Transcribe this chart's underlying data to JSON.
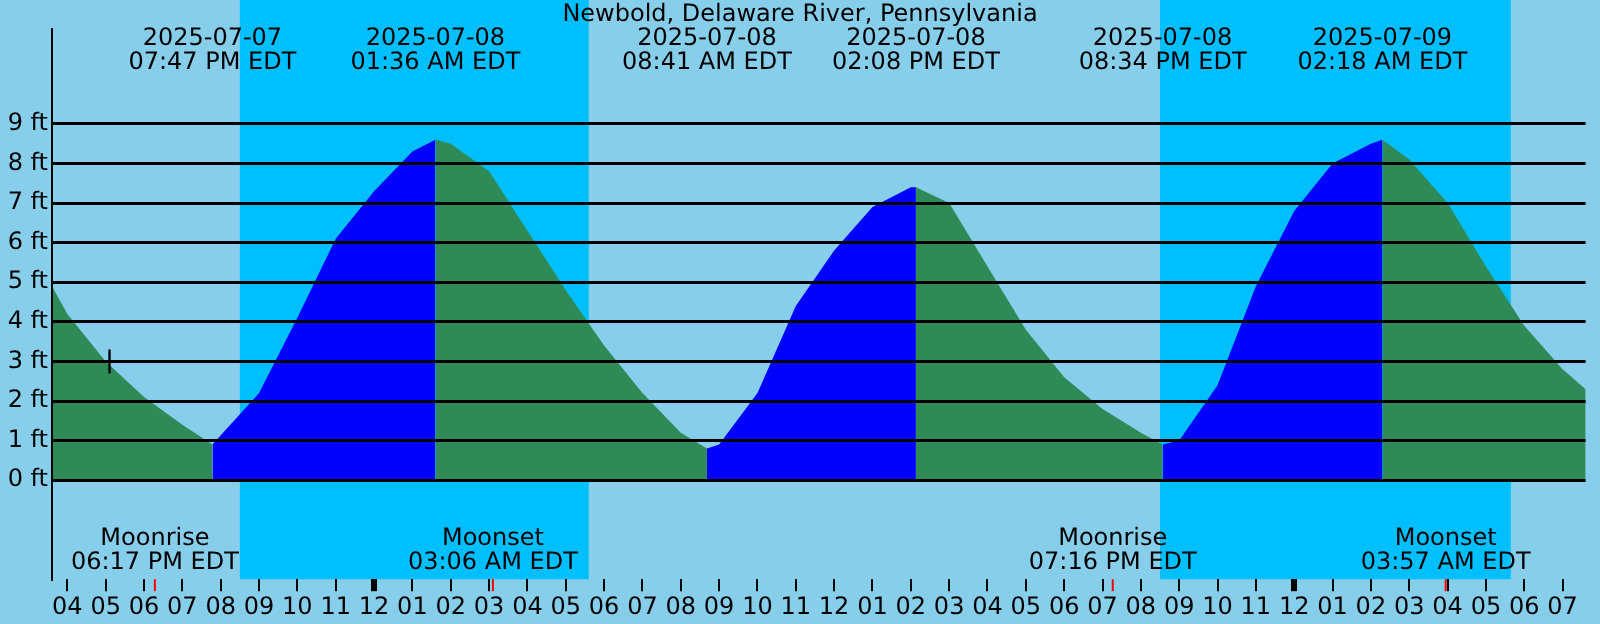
{
  "chart_data": {
    "type": "area",
    "title": "Newbold, Delaware River, Pennsylvania",
    "series": [
      {
        "color": "#2e8b57",
        "x": [
          "2025-07-07T15:36",
          "2025-07-07T16:00",
          "2025-07-07T17:00",
          "2025-07-07T18:00",
          "2025-07-07T19:00",
          "2025-07-07T19:47"
        ],
        "values": [
          4.9,
          4.2,
          3.0,
          2.1,
          1.4,
          0.9
        ]
      },
      {
        "color": "#0000ff",
        "x": [
          "2025-07-07T19:47",
          "2025-07-07T21:00",
          "2025-07-07T22:00",
          "2025-07-07T23:00",
          "2025-07-08T00:00",
          "2025-07-08T01:00",
          "2025-07-08T01:36"
        ],
        "values": [
          0.9,
          2.2,
          4.1,
          6.1,
          7.3,
          8.3,
          8.6
        ]
      },
      {
        "color": "#2e8b57",
        "x": [
          "2025-07-08T01:36",
          "2025-07-08T02:00",
          "2025-07-08T03:00",
          "2025-07-08T04:00",
          "2025-07-08T05:00",
          "2025-07-08T06:00",
          "2025-07-08T07:00",
          "2025-07-08T08:00",
          "2025-07-08T08:41"
        ],
        "values": [
          8.6,
          8.5,
          7.8,
          6.3,
          4.8,
          3.4,
          2.2,
          1.2,
          0.8
        ]
      },
      {
        "color": "#0000ff",
        "x": [
          "2025-07-08T08:41",
          "2025-07-08T09:00",
          "2025-07-08T10:00",
          "2025-07-08T11:00",
          "2025-07-08T12:00",
          "2025-07-08T13:00",
          "2025-07-08T14:00",
          "2025-07-08T14:08"
        ],
        "values": [
          0.8,
          0.9,
          2.2,
          4.4,
          5.8,
          6.9,
          7.4,
          7.4
        ]
      },
      {
        "color": "#2e8b57",
        "x": [
          "2025-07-08T14:08",
          "2025-07-08T15:00",
          "2025-07-08T16:00",
          "2025-07-08T17:00",
          "2025-07-08T18:00",
          "2025-07-08T19:00",
          "2025-07-08T20:00",
          "2025-07-08T20:34"
        ],
        "values": [
          7.4,
          7.0,
          5.4,
          3.8,
          2.6,
          1.8,
          1.2,
          0.9
        ]
      },
      {
        "color": "#0000ff",
        "x": [
          "2025-07-08T20:34",
          "2025-07-08T21:00",
          "2025-07-08T22:00",
          "2025-07-08T23:00",
          "2025-07-09T00:00",
          "2025-07-09T01:00",
          "2025-07-09T02:00",
          "2025-07-09T02:18"
        ],
        "values": [
          0.9,
          1.0,
          2.4,
          4.9,
          6.8,
          8.0,
          8.5,
          8.6
        ]
      },
      {
        "color": "#2e8b57",
        "x": [
          "2025-07-09T02:18",
          "2025-07-09T03:00",
          "2025-07-09T04:00",
          "2025-07-09T05:00",
          "2025-07-09T06:00",
          "2025-07-09T07:00",
          "2025-07-09T07:36"
        ],
        "values": [
          8.6,
          8.1,
          7.0,
          5.4,
          3.9,
          2.8,
          2.3
        ]
      },
      {
        "type": "scatter",
        "color": "#000000",
        "marker": "cross",
        "x": [
          "2025-07-07T17:06"
        ],
        "values": [
          3.0
        ]
      }
    ],
    "xlim": [
      "2025-07-07T15:36",
      "2025-07-09T07:36"
    ],
    "xticks": [
      {
        "value": "2025-07-07T16:00",
        "label": "04"
      },
      {
        "value": "2025-07-07T17:00",
        "label": "05"
      },
      {
        "value": "2025-07-07T18:00",
        "label": "06"
      },
      {
        "value": "2025-07-07T19:00",
        "label": "07"
      },
      {
        "value": "2025-07-07T20:00",
        "label": "08"
      },
      {
        "value": "2025-07-07T21:00",
        "label": "09"
      },
      {
        "value": "2025-07-07T22:00",
        "label": "10"
      },
      {
        "value": "2025-07-07T23:00",
        "label": "11"
      },
      {
        "value": "2025-07-08T00:00",
        "label": "12"
      },
      {
        "value": "2025-07-08T01:00",
        "label": "01"
      },
      {
        "value": "2025-07-08T02:00",
        "label": "02"
      },
      {
        "value": "2025-07-08T03:00",
        "label": "03"
      },
      {
        "value": "2025-07-08T04:00",
        "label": "04"
      },
      {
        "value": "2025-07-08T05:00",
        "label": "05"
      },
      {
        "value": "2025-07-08T06:00",
        "label": "06"
      },
      {
        "value": "2025-07-08T07:00",
        "label": "07"
      },
      {
        "value": "2025-07-08T08:00",
        "label": "08"
      },
      {
        "value": "2025-07-08T09:00",
        "label": "09"
      },
      {
        "value": "2025-07-08T10:00",
        "label": "10"
      },
      {
        "value": "2025-07-08T11:00",
        "label": "11"
      },
      {
        "value": "2025-07-08T12:00",
        "label": "12"
      },
      {
        "value": "2025-07-08T13:00",
        "label": "01"
      },
      {
        "value": "2025-07-08T14:00",
        "label": "02"
      },
      {
        "value": "2025-07-08T15:00",
        "label": "03"
      },
      {
        "value": "2025-07-08T16:00",
        "label": "04"
      },
      {
        "value": "2025-07-08T17:00",
        "label": "05"
      },
      {
        "value": "2025-07-08T18:00",
        "label": "06"
      },
      {
        "value": "2025-07-08T19:00",
        "label": "07"
      },
      {
        "value": "2025-07-08T20:00",
        "label": "08"
      },
      {
        "value": "2025-07-08T21:00",
        "label": "09"
      },
      {
        "value": "2025-07-08T22:00",
        "label": "10"
      },
      {
        "value": "2025-07-08T23:00",
        "label": "11"
      },
      {
        "value": "2025-07-09T00:00",
        "label": "12"
      },
      {
        "value": "2025-07-09T01:00",
        "label": "01"
      },
      {
        "value": "2025-07-09T02:00",
        "label": "02"
      },
      {
        "value": "2025-07-09T03:00",
        "label": "03"
      },
      {
        "value": "2025-07-09T04:00",
        "label": "04"
      },
      {
        "value": "2025-07-09T05:00",
        "label": "05"
      },
      {
        "value": "2025-07-09T06:00",
        "label": "06"
      },
      {
        "value": "2025-07-09T07:00",
        "label": "07"
      }
    ],
    "ylim": [
      -2.5,
      11.4
    ],
    "yticks": [
      {
        "value": 0,
        "label": "0 ft"
      },
      {
        "value": 1,
        "label": "1 ft"
      },
      {
        "value": 2,
        "label": "2 ft"
      },
      {
        "value": 3,
        "label": "3 ft"
      },
      {
        "value": 4,
        "label": "4 ft"
      },
      {
        "value": 5,
        "label": "5 ft"
      },
      {
        "value": 6,
        "label": "6 ft"
      },
      {
        "value": 7,
        "label": "7 ft"
      },
      {
        "value": 8,
        "label": "8 ft"
      },
      {
        "value": 9,
        "label": "9 ft"
      }
    ],
    "grid": "y",
    "bands": [
      {
        "axis": "x",
        "from": "2025-07-07T20:30",
        "to": "2025-07-08T05:36",
        "color": "#00bfff"
      },
      {
        "axis": "x",
        "from": "2025-07-08T20:30",
        "to": "2025-07-09T05:39",
        "color": "#00bfff"
      }
    ],
    "ref_lines": [
      {
        "axis": "x",
        "value": "2025-07-07T18:17",
        "label": "Moonrise\n06:17 PM EDT",
        "color": "#ff0000"
      },
      {
        "axis": "x",
        "value": "2025-07-08T03:06",
        "label": "Moonset\n03:06 AM EDT",
        "color": "#ff0000"
      },
      {
        "axis": "x",
        "value": "2025-07-08T19:16",
        "label": "Moonrise\n07:16 PM EDT",
        "color": "#ff0000"
      },
      {
        "axis": "x",
        "value": "2025-07-09T03:57",
        "label": "Moonset\n03:57 AM EDT",
        "color": "#ff0000"
      }
    ],
    "annotations": [
      "2025-07-07\n07:47 PM EDT",
      "2025-07-08\n01:36 AM EDT",
      "2025-07-08\n08:41 AM EDT",
      "2025-07-08\n02:08 PM EDT",
      "2025-07-08\n08:34 PM EDT",
      "2025-07-09\n02:18 AM EDT"
    ],
    "legend": false
  }
}
